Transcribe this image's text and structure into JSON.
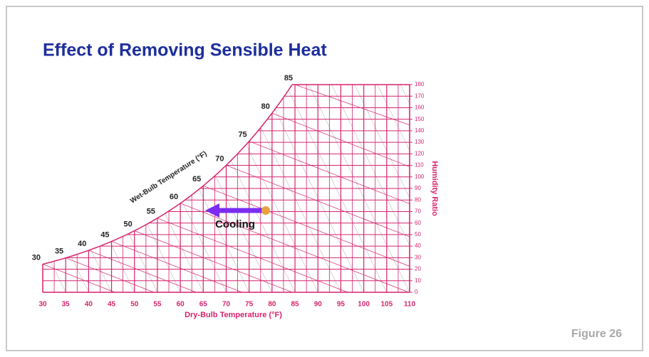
{
  "title": "Effect of Removing Sensible Heat",
  "figure_label": "Figure 26",
  "chart_data": {
    "type": "psychrometric",
    "xlabel": "Dry-Bulb Temperature (°F)",
    "y2label": "Humidity Ratio",
    "curve_label": "Wet-Bulb Temperature (°F)",
    "annotation": "Cooling",
    "color": "#d6246e",
    "xlim": [
      30,
      110
    ],
    "xticks": [
      30,
      35,
      40,
      45,
      50,
      55,
      60,
      65,
      70,
      75,
      80,
      85,
      90,
      95,
      100,
      105,
      110
    ],
    "y2lim": [
      0,
      180
    ],
    "y2ticks": [
      0,
      10,
      20,
      30,
      40,
      50,
      60,
      70,
      80,
      90,
      100,
      110,
      120,
      130,
      140,
      150,
      160,
      170,
      180
    ],
    "wet_bulb_labels": [
      30,
      35,
      40,
      45,
      50,
      55,
      60,
      65,
      70,
      75,
      80,
      85
    ],
    "grid": true
  }
}
